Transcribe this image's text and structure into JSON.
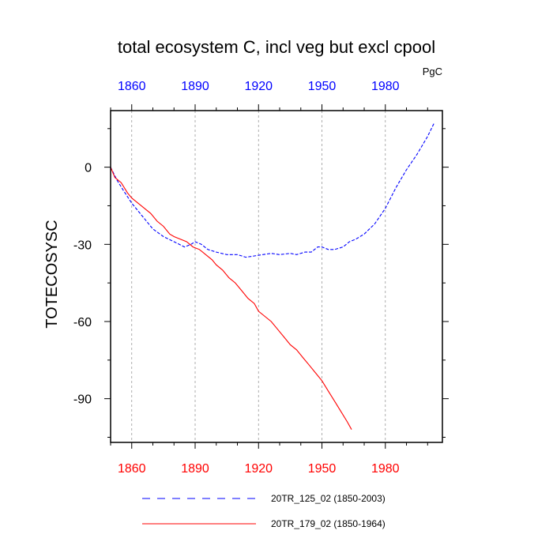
{
  "chart_data": {
    "type": "line",
    "title": "total ecosystem C, incl veg but excl cpool",
    "ylabel": "TOTECOSYSC",
    "units": "PgC",
    "xlim": [
      1850,
      2007
    ],
    "ylim": [
      -107,
      22
    ],
    "x_ticks": [
      1860,
      1890,
      1920,
      1950,
      1980
    ],
    "x_tick_labels": [
      "1860",
      "1890",
      "1920",
      "1950",
      "1980"
    ],
    "y_ticks": [
      0,
      -30,
      -60,
      -90
    ],
    "y_tick_labels": [
      "0",
      "-30",
      "-60",
      "-90"
    ],
    "colors": {
      "top_axis": "#0000ff",
      "bottom_axis": "#ff0000",
      "grid": "#999999"
    },
    "series": [
      {
        "name": "20TR_125_02 (1850-2003)",
        "color": "#0000ff",
        "dash": "dashed",
        "x": [
          1850,
          1853,
          1856,
          1860,
          1865,
          1870,
          1875,
          1880,
          1885,
          1888,
          1890,
          1893,
          1896,
          1900,
          1905,
          1910,
          1914,
          1918,
          1922,
          1926,
          1930,
          1935,
          1938,
          1942,
          1945,
          1948,
          1950,
          1953,
          1956,
          1960,
          1963,
          1966,
          1970,
          1975,
          1980,
          1985,
          1990,
          1995,
          2000,
          2003
        ],
        "values": [
          0,
          -5,
          -9,
          -14,
          -19,
          -24,
          -27,
          -29,
          -31,
          -30,
          -29,
          -30,
          -32,
          -33,
          -34,
          -34,
          -35,
          -34.5,
          -34,
          -33.5,
          -34,
          -33.5,
          -34,
          -33,
          -33,
          -31,
          -31,
          -32,
          -32,
          -31,
          -29,
          -28,
          -26,
          -22,
          -16,
          -8,
          -1,
          5,
          12,
          17
        ]
      },
      {
        "name": "20TR_179_02 (1850-1964)",
        "color": "#ff0000",
        "dash": "solid",
        "x": [
          1850,
          1852,
          1855,
          1858,
          1860,
          1863,
          1866,
          1869,
          1872,
          1875,
          1878,
          1880,
          1883,
          1886,
          1889,
          1892,
          1895,
          1898,
          1900,
          1903,
          1906,
          1909,
          1912,
          1915,
          1918,
          1920,
          1923,
          1926,
          1929,
          1932,
          1935,
          1938,
          1941,
          1944,
          1947,
          1950,
          1953,
          1956,
          1959,
          1962,
          1964
        ],
        "values": [
          0,
          -4,
          -6,
          -10,
          -12,
          -14,
          -16,
          -18,
          -21,
          -23,
          -26,
          -27,
          -28,
          -29,
          -31,
          -32,
          -34,
          -36,
          -38,
          -40,
          -43,
          -45,
          -48,
          -51,
          -53,
          -56,
          -58,
          -60,
          -63,
          -66,
          -69,
          -71,
          -74,
          -77,
          -80,
          -83,
          -87,
          -91,
          -95,
          -99,
          -102
        ]
      }
    ]
  }
}
